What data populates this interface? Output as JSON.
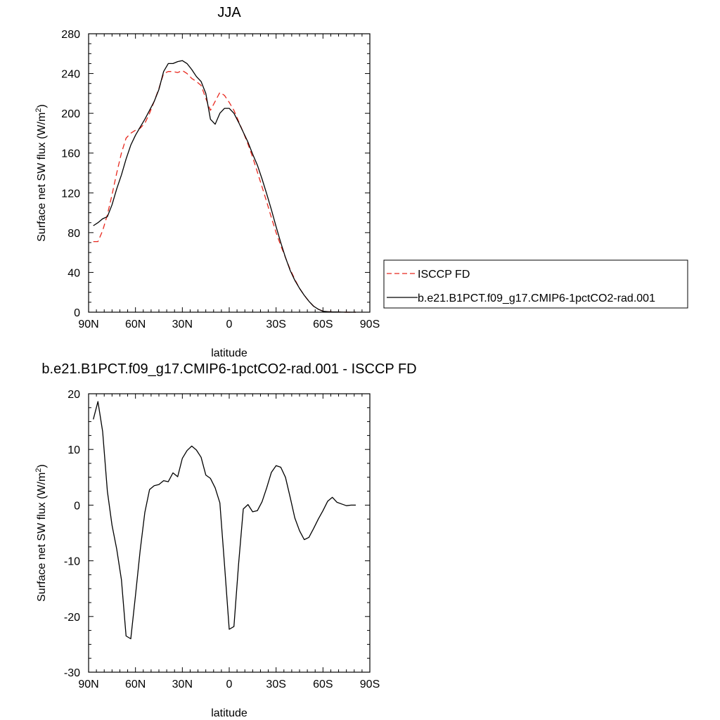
{
  "chart_data": [
    {
      "type": "line",
      "title": "JJA",
      "xlabel": "latitude",
      "ylabel": "Surface net SW flux (W/m²)",
      "xlim": [
        90,
        -90
      ],
      "ylim": [
        0,
        280
      ],
      "xticks": [
        {
          "value": 90,
          "label": "90N"
        },
        {
          "value": 60,
          "label": "60N"
        },
        {
          "value": 30,
          "label": "30N"
        },
        {
          "value": 0,
          "label": "0"
        },
        {
          "value": -30,
          "label": "30S"
        },
        {
          "value": -60,
          "label": "60S"
        },
        {
          "value": -90,
          "label": "90S"
        }
      ],
      "yticks": [
        0,
        40,
        80,
        120,
        160,
        200,
        240,
        280
      ],
      "legend_position": "right",
      "series": [
        {
          "name": "ISCCP FD",
          "color": "#e8281e",
          "dash": "dashed",
          "x": [
            87,
            84,
            81,
            78,
            75,
            72,
            69,
            66,
            63,
            60,
            57,
            54,
            51,
            48,
            45,
            42,
            39,
            36,
            33,
            30,
            27,
            24,
            21,
            18,
            15,
            12,
            9,
            6,
            3,
            0,
            -3,
            -6,
            -9,
            -12,
            -15,
            -18,
            -21,
            -24,
            -27,
            -30,
            -33,
            -36,
            -39,
            -42,
            -45,
            -48,
            -51,
            -54,
            -57,
            -60,
            -63,
            -66,
            -69,
            -72,
            -75,
            -78,
            -81
          ],
          "y": [
            71,
            71,
            82,
            98,
            118,
            140,
            160,
            175,
            180,
            183,
            185,
            190,
            200,
            212,
            225,
            240,
            242,
            242,
            241,
            243,
            240,
            235,
            232,
            228,
            215,
            203,
            212,
            221,
            218,
            211,
            203,
            192,
            181,
            169,
            156,
            141,
            126,
            111,
            95,
            80,
            67,
            55,
            43,
            33,
            24,
            17,
            11,
            6,
            3,
            1,
            0.5,
            0.3,
            0.2,
            0.1,
            0,
            0,
            0
          ]
        },
        {
          "name": "b.e21.B1PCT.f09_g17.CMIP6-1pctCO2-rad.001",
          "color": "#000000",
          "dash": "solid",
          "x": [
            87,
            84,
            81,
            78,
            75,
            72,
            69,
            66,
            63,
            60,
            57,
            54,
            51,
            48,
            45,
            42,
            39,
            36,
            33,
            30,
            27,
            24,
            21,
            18,
            15,
            12,
            9,
            6,
            3,
            0,
            -3,
            -6,
            -9,
            -12,
            -15,
            -18,
            -21,
            -24,
            -27,
            -30,
            -33,
            -36,
            -39,
            -42,
            -45,
            -48,
            -51,
            -54,
            -57,
            -60,
            -63,
            -66,
            -69,
            -72,
            -75,
            -78,
            -81
          ],
          "y": [
            87,
            90,
            94,
            96,
            108,
            124,
            138,
            154,
            168,
            178,
            186,
            194,
            203,
            212,
            224,
            242,
            250,
            250,
            252,
            253,
            250,
            244,
            237,
            232,
            220,
            194,
            189,
            200,
            205,
            205,
            200,
            191,
            181,
            171,
            159,
            148,
            134,
            119,
            103,
            86,
            70,
            55,
            42,
            32,
            24,
            17,
            11,
            6,
            3,
            1,
            0.5,
            0.3,
            0.2,
            0.1,
            0,
            0,
            0
          ]
        }
      ]
    },
    {
      "type": "line",
      "title": "b.e21.B1PCT.f09_g17.CMIP6-1pctCO2-rad.001 - ISCCP FD",
      "xlabel": "latitude",
      "ylabel": "Surface net SW flux (W/m²)",
      "xlim": [
        90,
        -90
      ],
      "ylim": [
        -30,
        20
      ],
      "xticks": [
        {
          "value": 90,
          "label": "90N"
        },
        {
          "value": 60,
          "label": "60N"
        },
        {
          "value": 30,
          "label": "30N"
        },
        {
          "value": 0,
          "label": "0"
        },
        {
          "value": -30,
          "label": "30S"
        },
        {
          "value": -60,
          "label": "60S"
        },
        {
          "value": -90,
          "label": "90S"
        }
      ],
      "yticks": [
        -30,
        -20,
        -10,
        0,
        10,
        20
      ],
      "series": [
        {
          "color": "#000000",
          "dash": "solid",
          "x": [
            87,
            84,
            81,
            78,
            75,
            72,
            69,
            66,
            63,
            60,
            57,
            54,
            51,
            48,
            45,
            42,
            39,
            36,
            33,
            30,
            27,
            24,
            21,
            18,
            15,
            12,
            9,
            6,
            3,
            0,
            -3,
            -6,
            -9,
            -12,
            -15,
            -18,
            -21,
            -24,
            -27,
            -30,
            -33,
            -36,
            -39,
            -42,
            -45,
            -48,
            -51,
            -54,
            -57,
            -60,
            -63,
            -66,
            -69,
            -72,
            -75,
            -78,
            -81
          ],
          "y": [
            15.4,
            18.6,
            13.2,
            2.5,
            -3.6,
            -7.9,
            -13.4,
            -23.5,
            -24.0,
            -16.2,
            -8.2,
            -1.3,
            2.8,
            3.5,
            3.7,
            4.4,
            4.2,
            5.8,
            5.1,
            8.4,
            9.8,
            10.6,
            9.9,
            8.6,
            5.4,
            4.8,
            3.1,
            0.4,
            -10.7,
            -22.3,
            -21.8,
            -10.6,
            -0.7,
            0.1,
            -1.2,
            -1.0,
            0.6,
            3.1,
            5.9,
            7.1,
            6.8,
            5.0,
            1.4,
            -2.3,
            -4.6,
            -6.2,
            -5.8,
            -4.2,
            -2.5,
            -1.0,
            0.7,
            1.4,
            0.5,
            0.2,
            -0.1,
            0.0,
            0.0
          ]
        }
      ]
    }
  ]
}
